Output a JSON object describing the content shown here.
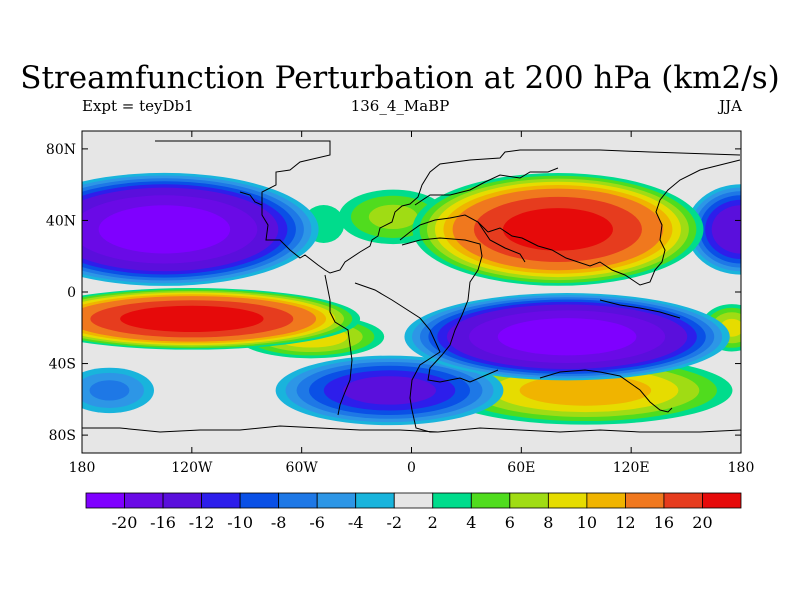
{
  "chart_data": {
    "type": "heatmap",
    "title": "Streamfunction Perturbation at 200 hPa (km2/s)",
    "subtitle_left": "Expt = teyDb1",
    "subtitle_center": "136_4_MaBP",
    "subtitle_right": "JJA",
    "x_range": [
      -180,
      180
    ],
    "y_range": [
      -90,
      90
    ],
    "x_ticks": [
      {
        "value": -180,
        "label": "180"
      },
      {
        "value": -120,
        "label": "120W"
      },
      {
        "value": -60,
        "label": "60W"
      },
      {
        "value": 0,
        "label": "0"
      },
      {
        "value": 60,
        "label": "60E"
      },
      {
        "value": 120,
        "label": "120E"
      },
      {
        "value": 180,
        "label": "180"
      }
    ],
    "y_ticks": [
      {
        "value": 80,
        "label": "80N"
      },
      {
        "value": 40,
        "label": "40N"
      },
      {
        "value": 0,
        "label": "0"
      },
      {
        "value": -40,
        "label": "40S"
      },
      {
        "value": -80,
        "label": "80S"
      }
    ],
    "colorbar": {
      "labels": [
        "-20",
        "-16",
        "-12",
        "-10",
        "-8",
        "-6",
        "-4",
        "-2",
        "2",
        "4",
        "6",
        "8",
        "10",
        "12",
        "16",
        "20"
      ],
      "colors": [
        "#7f00ff",
        "#6a0ae6",
        "#5a0fdc",
        "#2d1eeb",
        "#0a50e6",
        "#1e78e6",
        "#2d96e6",
        "#19b4dc",
        "#e6e6e6",
        "#00dc8c",
        "#50dc1e",
        "#a0dc14",
        "#e6dc00",
        "#f0b400",
        "#f0781e",
        "#e63c1e",
        "#e60a0a"
      ]
    },
    "centers": [
      {
        "lon": -135,
        "lat": 35,
        "value": -24,
        "rlon": 55,
        "rlat": 22
      },
      {
        "lon": 180,
        "lat": 35,
        "value": -16,
        "rlon": 20,
        "rlat": 18
      },
      {
        "lon": 85,
        "lat": -25,
        "value": -24,
        "rlon": 58,
        "rlat": 17
      },
      {
        "lon": -12,
        "lat": -55,
        "value": -14,
        "rlon": 42,
        "rlat": 14
      },
      {
        "lon": -165,
        "lat": -55,
        "value": -7,
        "rlon": 18,
        "rlat": 10
      },
      {
        "lon": -120,
        "lat": -15,
        "value": 24,
        "rlon": 60,
        "rlat": 12
      },
      {
        "lon": -55,
        "lat": -25,
        "value": 10,
        "rlon": 28,
        "rlat": 9
      },
      {
        "lon": 80,
        "lat": 35,
        "value": 23,
        "rlon": 52,
        "rlat": 22
      },
      {
        "lon": 95,
        "lat": -55,
        "value": 12,
        "rlon": 55,
        "rlat": 14
      },
      {
        "lon": -10,
        "lat": 42,
        "value": 7,
        "rlon": 22,
        "rlat": 12
      },
      {
        "lon": -48,
        "lat": 38,
        "value": 4,
        "rlon": 10,
        "rlat": 10
      },
      {
        "lon": 175,
        "lat": -20,
        "value": 9,
        "rlon": 12,
        "rlat": 10
      }
    ]
  }
}
